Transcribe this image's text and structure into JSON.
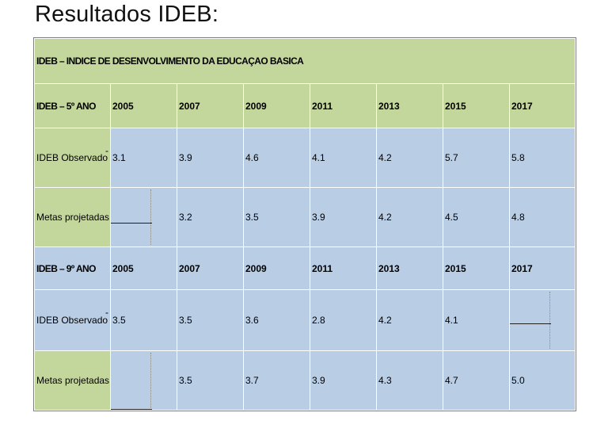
{
  "title": "Resultados IDEB:",
  "table": {
    "header": "IDEB – INDICE DE DESENVOLVIMENTO DA EDUCAÇAO BASICA",
    "sections": [
      {
        "label": "IDEB – 5º ANO",
        "years": [
          "2005",
          "2007",
          "2009",
          "2011",
          "2013",
          "2015",
          "2017"
        ],
        "observado_label": "IDEB Observado",
        "observado": [
          "3.1",
          "3.9",
          "4.6",
          "4.1",
          "4.2",
          "5.7",
          "5.8"
        ],
        "metas_label": "Metas projetadas",
        "metas": [
          "",
          "3.2",
          "3.5",
          "3.9",
          "4.2",
          "4.5",
          "4.8"
        ]
      },
      {
        "label": "IDEB – 9º ANO",
        "years": [
          "2005",
          "2007",
          "2009",
          "2011",
          "2013",
          "2015",
          "2017"
        ],
        "observado_label": "IDEB Observado",
        "observado": [
          "3.5",
          "3.5",
          "3.6",
          "2.8",
          "4.2",
          "4.1",
          ""
        ],
        "metas_label": "Metas projetadas",
        "metas": [
          "",
          "3.5",
          "3.7",
          "3.9",
          "4.3",
          "4.7",
          "5.0"
        ]
      }
    ]
  },
  "colors": {
    "green": "#c3d69b",
    "blue": "#b9cde5"
  }
}
